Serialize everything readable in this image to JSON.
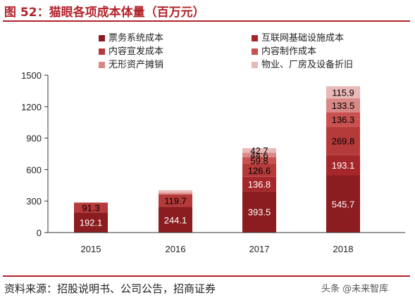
{
  "figure_title": "图 52：猫眼各项成本体量（百万元）",
  "source": "资料来源：招股说明书、公司公告，招商证券",
  "watermark": "头条 @未来智库",
  "chart_data": {
    "type": "bar",
    "stacked": true,
    "title": "",
    "xlabel": "",
    "ylabel": "",
    "categories": [
      "2015",
      "2016",
      "2017",
      "2018"
    ],
    "ylim": [
      0,
      1500
    ],
    "yticks": [
      0,
      300,
      600,
      900,
      1200,
      1500
    ],
    "legend_position": "top",
    "series": [
      {
        "name": "票务系统成本",
        "color": "#8b1c1f",
        "values": [
          192.1,
          244.1,
          393.5,
          545.7
        ],
        "labels": [
          "192.1",
          "244.1",
          "393.5",
          "545.7"
        ],
        "label_color": "#ffffff"
      },
      {
        "name": "互联网基础设施成本",
        "color": "#a5272a",
        "values": [
          0,
          0,
          136.8,
          193.1
        ],
        "labels": [
          "",
          "",
          "136.8",
          "193.1"
        ],
        "label_color": "#ffffff"
      },
      {
        "name": "内容宣发成本",
        "color": "#b53a3a",
        "values": [
          91.3,
          119.7,
          126.6,
          269.8
        ],
        "labels": [
          "91.3",
          "119.7",
          "126.6",
          "269.8"
        ],
        "label_color": "#000000"
      },
      {
        "name": "内容制作成本",
        "color": "#c9514f",
        "values": [
          0,
          0,
          59.8,
          136.3
        ],
        "labels": [
          "",
          "",
          "59.8",
          "136.3"
        ],
        "label_color": "#000000"
      },
      {
        "name": "无形资产摊销",
        "color": "#d98886",
        "values": [
          5,
          15,
          44.6,
          133.5
        ],
        "labels": [
          "",
          "",
          "44.6",
          "133.5"
        ],
        "label_color": "#000000"
      },
      {
        "name": "物业、厂房及设备折旧",
        "color": "#e9b9b7",
        "values": [
          0,
          25,
          42.7,
          115.9
        ],
        "labels": [
          "",
          "",
          "42.7",
          "115.9"
        ],
        "label_color": "#000000"
      }
    ]
  }
}
